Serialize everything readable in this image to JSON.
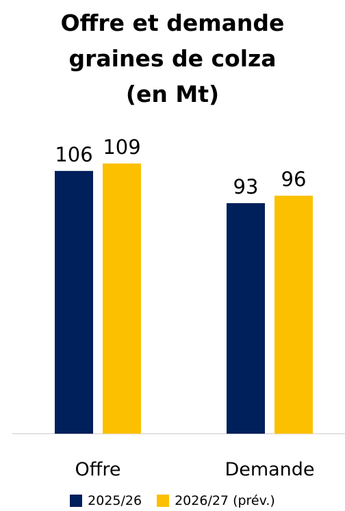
{
  "chart_data": {
    "type": "bar",
    "title_lines": [
      "Offre et demande",
      "graines de colza",
      "(en Mt)"
    ],
    "categories": [
      "Offre",
      "Demande"
    ],
    "series": [
      {
        "name": "2025/26",
        "values": [
          106,
          93
        ],
        "color": "#00205b"
      },
      {
        "name": "2026/27 (prév.)",
        "values": [
          109,
          96
        ],
        "color": "#fcc000"
      }
    ],
    "ylim": [
      0,
      109
    ],
    "grid": false,
    "axis_color": "#d9d9d9",
    "legend_position": "bottom"
  }
}
